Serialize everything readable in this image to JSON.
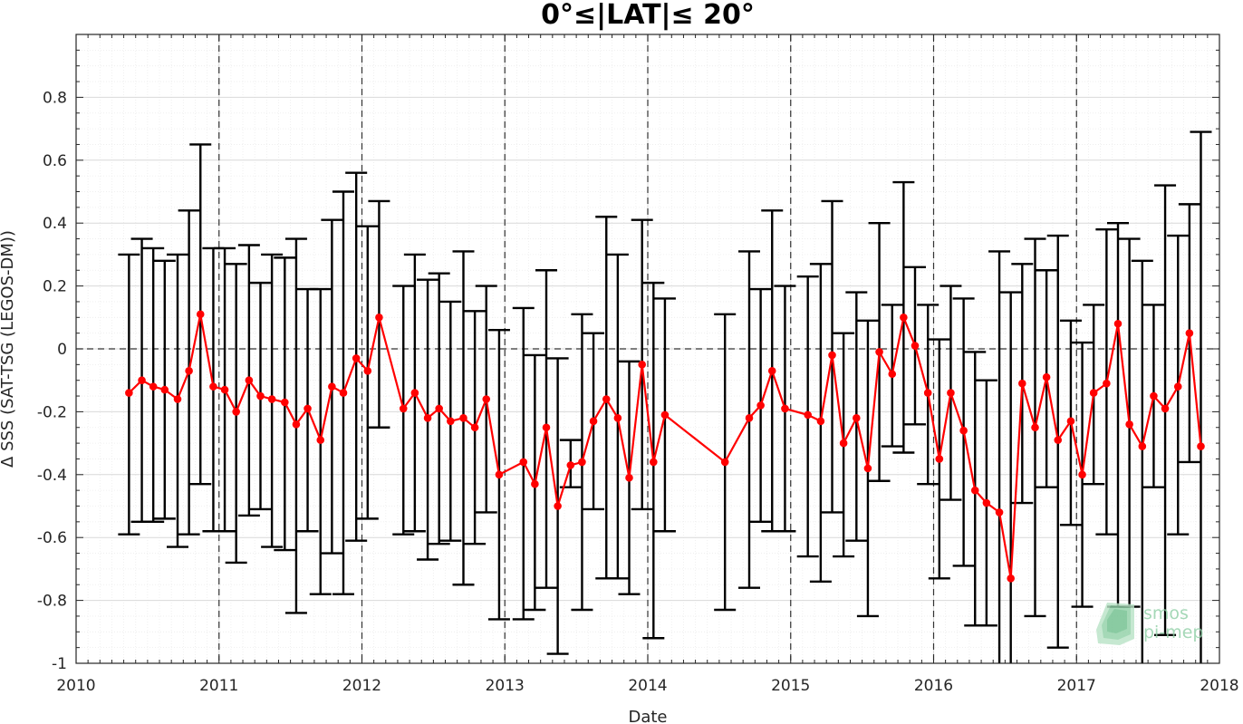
{
  "chart_data": {
    "type": "line",
    "title": "0°≤|LAT|≤ 20°",
    "xlabel": "Date",
    "ylabel": "Δ SSS (SAT-TSG (LEGOS-DM))",
    "xlim": [
      2010,
      2018
    ],
    "ylim": [
      -1,
      1
    ],
    "xticks": [
      "2010",
      "2011",
      "2012",
      "2013",
      "2014",
      "2015",
      "2016",
      "2017",
      "2018"
    ],
    "yticks": [
      "-1",
      "-0.8",
      "-0.6",
      "-0.4",
      "-0.2",
      "0",
      "0.2",
      "0.4",
      "0.6",
      "0.8"
    ],
    "grid": true,
    "minor_grid": true,
    "reference_line_y": 0,
    "year_boundaries_dashed": [
      2011,
      2012,
      2013,
      2014,
      2015,
      2016,
      2017
    ],
    "colors": {
      "line": "#ff0000",
      "errorbar": "#000000",
      "grid": "#d9d9d9",
      "logo": "#8fcfa6"
    },
    "series": [
      {
        "marker": "filled-circle",
        "x": [
          2010.37,
          2010.46,
          2010.54,
          2010.62,
          2010.71,
          2010.79,
          2010.87,
          2010.96,
          2011.04,
          2011.12,
          2011.21,
          2011.29,
          2011.37,
          2011.46,
          2011.54,
          2011.62,
          2011.71,
          2011.79,
          2011.87,
          2011.96,
          2012.04,
          2012.12,
          2012.29,
          2012.37,
          2012.46,
          2012.54,
          2012.62,
          2012.71,
          2012.79,
          2012.87,
          2012.96,
          2013.13,
          2013.21,
          2013.29,
          2013.37,
          2013.46,
          2013.54,
          2013.62,
          2013.71,
          2013.79,
          2013.87,
          2013.96,
          2014.04,
          2014.12,
          2014.54,
          2014.71,
          2014.79,
          2014.87,
          2014.96,
          2015.12,
          2015.21,
          2015.29,
          2015.37,
          2015.46,
          2015.54,
          2015.62,
          2015.71,
          2015.79,
          2015.87,
          2015.96,
          2016.04,
          2016.12,
          2016.21,
          2016.29,
          2016.37,
          2016.46,
          2016.54,
          2016.62,
          2016.71,
          2016.79,
          2016.87,
          2016.96,
          2017.04,
          2017.12,
          2017.21,
          2017.29,
          2017.37,
          2017.46,
          2017.54,
          2017.62,
          2017.71,
          2017.79,
          2017.87
        ],
        "y": [
          -0.14,
          -0.1,
          -0.12,
          -0.13,
          -0.16,
          -0.07,
          0.11,
          -0.12,
          -0.13,
          -0.2,
          -0.1,
          -0.15,
          -0.16,
          -0.17,
          -0.24,
          -0.19,
          -0.29,
          -0.12,
          -0.14,
          -0.03,
          -0.07,
          0.1,
          -0.19,
          -0.14,
          -0.22,
          -0.19,
          -0.23,
          -0.22,
          -0.25,
          -0.16,
          -0.4,
          -0.36,
          -0.43,
          -0.25,
          -0.5,
          -0.37,
          -0.36,
          -0.23,
          -0.16,
          -0.22,
          -0.41,
          -0.05,
          -0.36,
          -0.21,
          -0.36,
          -0.22,
          -0.18,
          -0.07,
          -0.19,
          -0.21,
          -0.23,
          -0.02,
          -0.3,
          -0.22,
          -0.38,
          -0.01,
          -0.08,
          0.1,
          0.01,
          -0.14,
          -0.35,
          -0.14,
          -0.26,
          -0.45,
          -0.49,
          -0.52,
          -0.73,
          -0.11,
          -0.25,
          -0.09,
          -0.29,
          -0.23,
          -0.4,
          -0.14,
          -0.11,
          0.08,
          -0.24,
          -0.31,
          -0.15,
          -0.19,
          -0.12,
          0.05,
          -0.31
        ],
        "upper": [
          0.3,
          0.35,
          0.32,
          0.28,
          0.3,
          0.44,
          0.65,
          0.32,
          0.32,
          0.27,
          0.33,
          0.21,
          0.3,
          0.29,
          0.35,
          0.19,
          0.19,
          0.41,
          0.5,
          0.56,
          0.39,
          0.47,
          0.2,
          0.3,
          0.22,
          0.24,
          0.15,
          0.31,
          0.12,
          0.2,
          0.06,
          0.13,
          -0.02,
          0.25,
          -0.03,
          -0.29,
          0.11,
          0.05,
          0.42,
          0.3,
          -0.04,
          0.41,
          0.21,
          0.16,
          0.11,
          0.31,
          0.19,
          0.44,
          0.2,
          0.23,
          0.27,
          0.47,
          0.05,
          0.18,
          0.09,
          0.4,
          0.14,
          0.53,
          0.26,
          0.14,
          0.03,
          0.2,
          0.16,
          -0.01,
          -0.1,
          0.31,
          0.18,
          0.27,
          0.35,
          0.25,
          0.36,
          0.09,
          0.02,
          0.14,
          0.38,
          0.4,
          0.35,
          0.28,
          0.14,
          0.52,
          0.36,
          0.46,
          0.69
        ],
        "lower": [
          -0.59,
          -0.55,
          -0.55,
          -0.54,
          -0.63,
          -0.59,
          -0.43,
          -0.58,
          -0.58,
          -0.68,
          -0.53,
          -0.51,
          -0.63,
          -0.64,
          -0.84,
          -0.58,
          -0.78,
          -0.65,
          -0.78,
          -0.61,
          -0.54,
          -0.25,
          -0.59,
          -0.58,
          -0.67,
          -0.62,
          -0.61,
          -0.75,
          -0.62,
          -0.52,
          -0.86,
          -0.86,
          -0.83,
          -0.76,
          -0.97,
          -0.44,
          -0.83,
          -0.51,
          -0.73,
          -0.73,
          -0.78,
          -0.51,
          -0.92,
          -0.58,
          -0.83,
          -0.76,
          -0.55,
          -0.58,
          -0.58,
          -0.66,
          -0.74,
          -0.52,
          -0.66,
          -0.61,
          -0.85,
          -0.42,
          -0.31,
          -0.33,
          -0.24,
          -0.43,
          -0.73,
          -0.48,
          -0.69,
          -0.88,
          -0.88,
          -1.0,
          -1.0,
          -0.49,
          -0.85,
          -0.44,
          -0.95,
          -0.56,
          -0.82,
          -0.43,
          -0.59,
          -0.82,
          -0.82,
          -1.0,
          -0.44,
          -0.91,
          -0.59,
          -0.36,
          -1.0
        ]
      }
    ]
  },
  "logo": {
    "line1": "smos",
    "line2": "pi-mep"
  }
}
